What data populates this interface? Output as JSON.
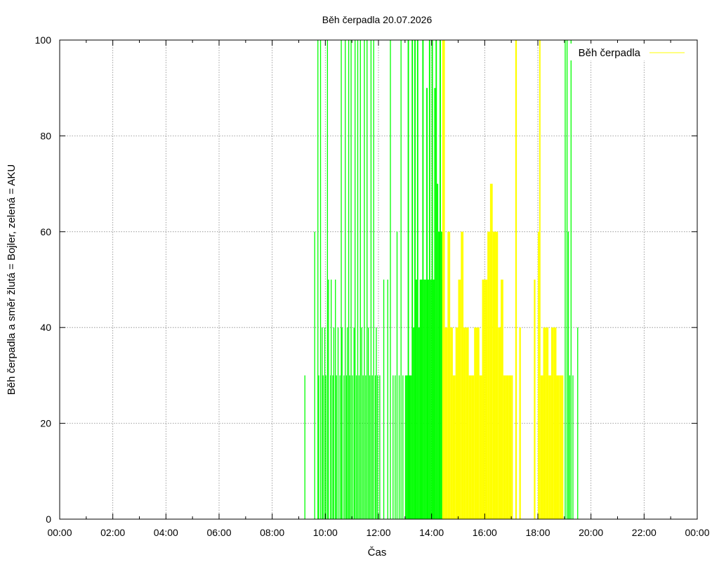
{
  "chart_data": {
    "type": "bar",
    "title": "Běh čerpadla 20.07.2026",
    "xlabel": "Čas",
    "ylabel": "Běh čerpadla a směr žlutá = Bojler, zelená = AKU",
    "xlim": [
      0,
      24
    ],
    "ylim": [
      0,
      100
    ],
    "x_ticks": [
      "00:00",
      "02:00",
      "04:00",
      "06:00",
      "08:00",
      "10:00",
      "12:00",
      "14:00",
      "16:00",
      "18:00",
      "20:00",
      "22:00",
      "00:00"
    ],
    "y_ticks": [
      "0",
      "20",
      "40",
      "60",
      "80",
      "100"
    ],
    "grid": true,
    "legend": {
      "position": "top-right",
      "label": "Běh čerpadla",
      "color": "#ffff00"
    },
    "colors": {
      "aku": "#00ff00",
      "bojler": "#ffff00"
    },
    "series": [
      {
        "direction": "AKU",
        "color": "#00ff00",
        "x": [
          9.23,
          9.6,
          9.72,
          9.75,
          9.82,
          9.88,
          9.92,
          9.98,
          10.02,
          10.08,
          10.12,
          10.2,
          10.22,
          10.28,
          10.32,
          10.38,
          10.42,
          10.48,
          10.55,
          10.6,
          10.63,
          10.7,
          10.75,
          10.8,
          10.83,
          10.88,
          10.92,
          10.97,
          11.02,
          11.08,
          11.12,
          11.17,
          11.22,
          11.27,
          11.32,
          11.37,
          11.42,
          11.47,
          11.52,
          11.57,
          11.62,
          11.67,
          11.72,
          11.77,
          11.82,
          11.88,
          11.92,
          11.97,
          12.05,
          12.2,
          12.35,
          12.45,
          12.55,
          12.63,
          12.7,
          12.78,
          12.85,
          12.92,
          13.0,
          13.05,
          13.1,
          13.15,
          13.2,
          13.25,
          13.3,
          13.35,
          13.4,
          13.45,
          13.5,
          13.55,
          13.6,
          13.65,
          13.7,
          13.75,
          13.8,
          13.85,
          13.9,
          13.95,
          14.0,
          14.05,
          14.1,
          14.15,
          14.2,
          14.25,
          14.3,
          14.35,
          14.4,
          14.45,
          19.03,
          19.1,
          19.15,
          19.2,
          19.25,
          19.32,
          19.5
        ],
        "values": [
          30,
          60,
          100,
          30,
          100,
          40,
          30,
          40,
          30,
          100,
          50,
          30,
          50,
          30,
          40,
          50,
          30,
          40,
          30,
          100,
          40,
          30,
          100,
          30,
          40,
          100,
          30,
          100,
          30,
          40,
          100,
          30,
          100,
          30,
          100,
          40,
          30,
          100,
          30,
          100,
          40,
          30,
          100,
          30,
          100,
          30,
          40,
          30,
          30,
          50,
          50,
          100,
          30,
          30,
          60,
          30,
          100,
          30,
          30,
          30,
          100,
          30,
          30,
          100,
          40,
          100,
          50,
          100,
          40,
          50,
          50,
          100,
          50,
          50,
          90,
          50,
          100,
          50,
          100,
          50,
          90,
          100,
          70,
          60,
          100,
          60,
          50,
          50,
          100,
          100,
          60,
          30,
          100,
          30,
          40
        ]
      },
      {
        "direction": "Bojler",
        "color": "#ffff00",
        "x": [
          14.4,
          14.5,
          14.6,
          14.7,
          14.8,
          14.9,
          15.0,
          15.1,
          15.2,
          15.3,
          15.4,
          15.5,
          15.6,
          15.7,
          15.8,
          15.9,
          16.0,
          16.1,
          16.2,
          16.3,
          16.4,
          16.5,
          16.6,
          16.7,
          16.8,
          16.9,
          17.0,
          17.15,
          17.3,
          17.85,
          18.0,
          18.05,
          18.1,
          18.2,
          18.3,
          18.4,
          18.5,
          18.6,
          18.7,
          18.8,
          18.9
        ],
        "values": [
          100,
          40,
          60,
          40,
          30,
          40,
          50,
          60,
          40,
          40,
          30,
          30,
          40,
          40,
          30,
          50,
          50,
          60,
          70,
          60,
          60,
          40,
          50,
          30,
          30,
          30,
          30,
          100,
          40,
          50,
          60,
          100,
          30,
          40,
          40,
          30,
          40,
          40,
          30,
          30,
          30
        ]
      }
    ]
  }
}
